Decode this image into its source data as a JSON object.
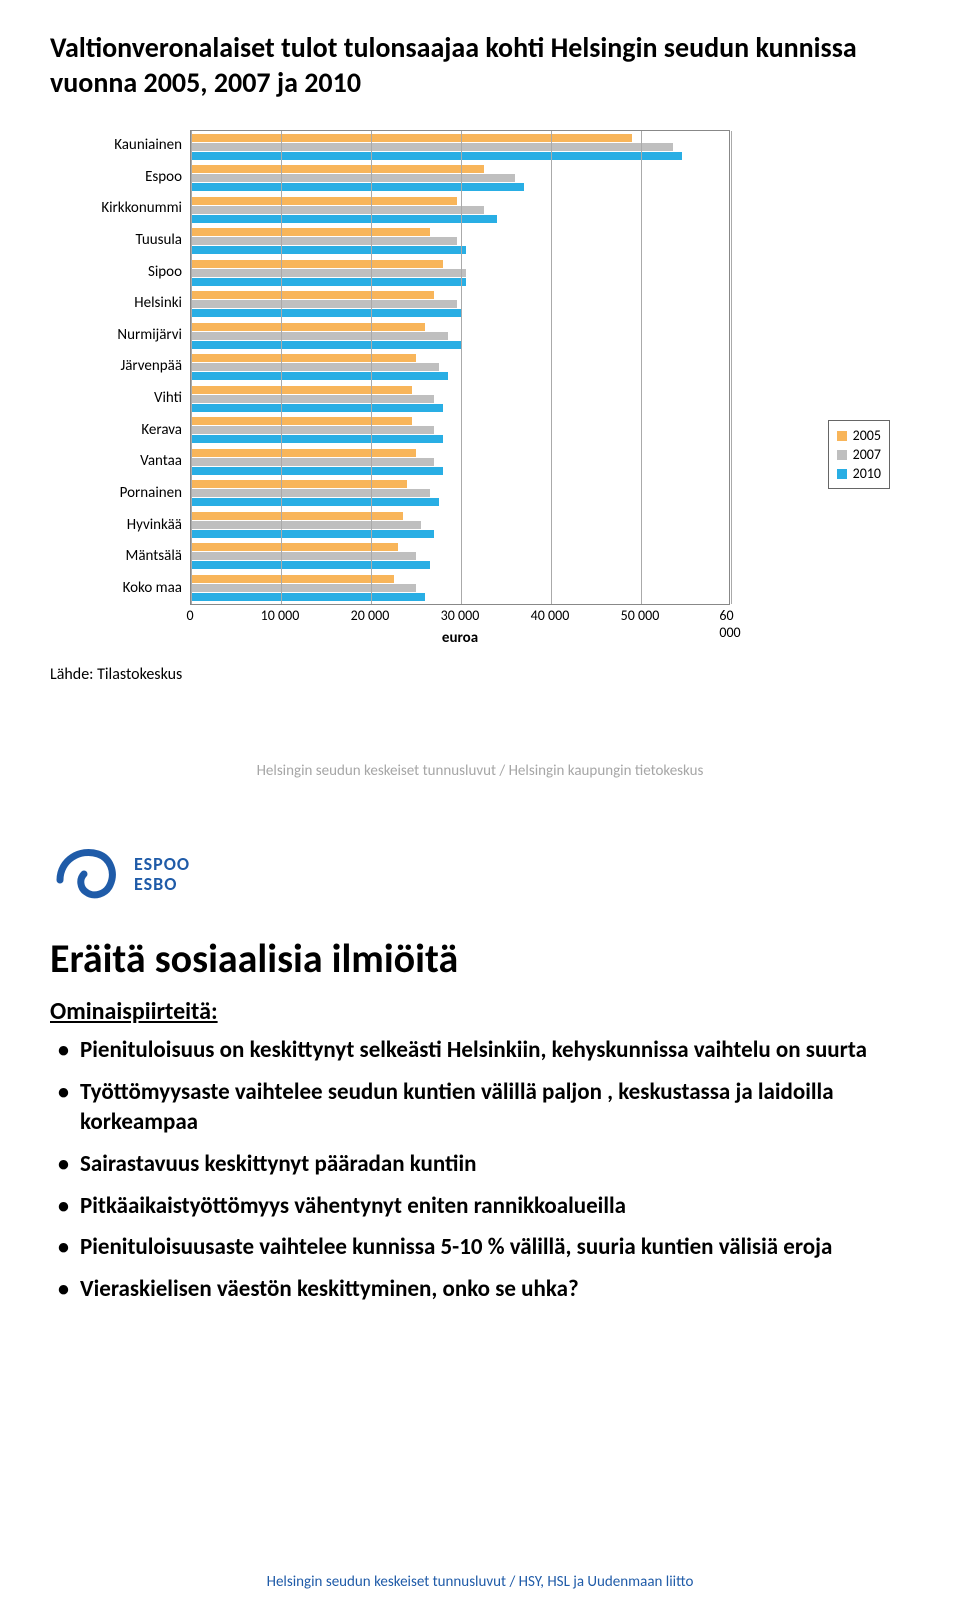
{
  "slide1": {
    "title": "Valtionveronalaiset tulot tulonsaajaa kohti Helsingin seudun kunnissa vuonna 2005, 2007 ja 2010",
    "chart": {
      "type": "horizontal-bar-grouped",
      "xmax": 60000,
      "xtick_step": 10000,
      "xticks": [
        "0",
        "10 000",
        "20 000",
        "30 000",
        "40 000",
        "50 000",
        "60 000"
      ],
      "xlabel": "euroa",
      "series": [
        {
          "name": "2005",
          "color": "#f8b55a"
        },
        {
          "name": "2007",
          "color": "#bfbfbf"
        },
        {
          "name": "2010",
          "color": "#29aee4"
        }
      ],
      "categories": [
        {
          "label": "Kauniainen",
          "v": [
            49000,
            53500,
            54500
          ]
        },
        {
          "label": "Espoo",
          "v": [
            32500,
            36000,
            37000
          ]
        },
        {
          "label": "Kirkkonummi",
          "v": [
            29500,
            32500,
            34000
          ]
        },
        {
          "label": "Tuusula",
          "v": [
            26500,
            29500,
            30500
          ]
        },
        {
          "label": "Sipoo",
          "v": [
            28000,
            30500,
            30500
          ]
        },
        {
          "label": "Helsinki",
          "v": [
            27000,
            29500,
            30000
          ]
        },
        {
          "label": "Nurmijärvi",
          "v": [
            26000,
            28500,
            30000
          ]
        },
        {
          "label": "Järvenpää",
          "v": [
            25000,
            27500,
            28500
          ]
        },
        {
          "label": "Vihti",
          "v": [
            24500,
            27000,
            28000
          ]
        },
        {
          "label": "Kerava",
          "v": [
            24500,
            27000,
            28000
          ]
        },
        {
          "label": "Vantaa",
          "v": [
            25000,
            27000,
            28000
          ]
        },
        {
          "label": "Pornainen",
          "v": [
            24000,
            26500,
            27500
          ]
        },
        {
          "label": "Hyvinkää",
          "v": [
            23500,
            25500,
            27000
          ]
        },
        {
          "label": "Mäntsälä",
          "v": [
            23000,
            25000,
            26500
          ]
        },
        {
          "label": "Koko maa",
          "v": [
            22500,
            25000,
            26000
          ]
        }
      ],
      "border_color": "#888888",
      "grid_color": "#aaaaaa",
      "label_fontsize": 15,
      "tick_fontsize": 14
    },
    "source": "Lähde: Tilastokeskus",
    "footer": "Helsingin seudun keskeiset tunnusluvut / Helsingin kaupungin tietokeskus"
  },
  "slide2": {
    "logo": {
      "line1": "ESPOO",
      "line2": "ESBO",
      "color": "#1f5ba8"
    },
    "title": "Eräitä sosiaalisia ilmiöitä",
    "subtitle": "Ominaispiirteitä:",
    "bullets": [
      "Pienituloisuus on keskittynyt selkeästi Helsinkiin, kehyskunnissa vaihtelu on suurta",
      "Työttömyysaste vaihtelee seudun kuntien välillä paljon , keskustassa ja laidoilla korkeampaa",
      "Sairastavuus keskittynyt pääradan kuntiin",
      "Pitkäaikaistyöttömyys vähentynyt eniten rannikkoalueilla",
      "Pienituloisuusaste vaihtelee kunnissa 5-10 % välillä, suuria kuntien välisiä eroja",
      "Vieraskielisen väestön keskittyminen, onko se uhka?"
    ],
    "footer": "Helsingin seudun keskeiset tunnusluvut / HSY, HSL ja Uudenmaan liitto"
  }
}
